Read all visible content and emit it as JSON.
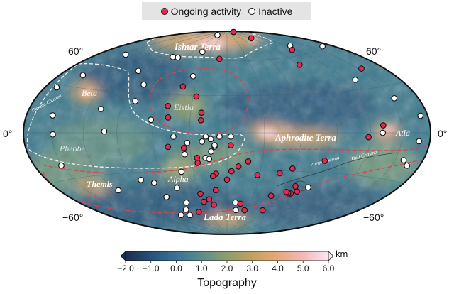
{
  "legend": {
    "ongoing_label": "Ongoing activity",
    "inactive_label": "Inactive",
    "ongoing_color": "#e8294f",
    "inactive_color": "#ffffff"
  },
  "lat_labels": {
    "n60": "60°",
    "zero": "0°",
    "s60": "−60°"
  },
  "regions": {
    "ishtar": "Ishtar Terra",
    "beta": "Beta",
    "eistla": "Eistla",
    "aphrodite": "Aphrodite Terra",
    "atla": "Atla",
    "pheobe": "Pheobe",
    "alpha": "Alpha",
    "themis": "Themis",
    "lada": "Lada Terra",
    "devana": "Devana Chasma",
    "parga": "Parga Chasma",
    "dali": "Dali Chasma"
  },
  "colorbar": {
    "ticks": [
      "−2.0",
      "−1.0",
      "0.0",
      "1.0",
      "2.0",
      "3.0",
      "4.0",
      "5.0",
      "6.0"
    ],
    "unit": "km",
    "title": "Topography",
    "colors": [
      "#1d2c4e",
      "#27527a",
      "#3a7394",
      "#5b8d8c",
      "#8e9d6c",
      "#c2a060",
      "#e6a97a",
      "#f2b8b8",
      "#fbe6f2"
    ]
  },
  "markers": {
    "ongoing": [
      [
        135,
        88
      ],
      [
        93,
        80
      ],
      [
        90,
        53
      ],
      [
        114,
        65
      ],
      [
        154,
        43
      ],
      [
        132,
        5
      ],
      [
        118,
        -3
      ],
      [
        84,
        -21
      ],
      [
        58,
        -28
      ],
      [
        48,
        -32
      ],
      [
        70,
        -42
      ],
      [
        76,
        -46
      ],
      [
        71,
        -48
      ],
      [
        68,
        -48
      ],
      [
        65,
        -47
      ],
      [
        51,
        -51
      ],
      [
        28,
        -34
      ],
      [
        10,
        -27
      ],
      [
        18,
        -23
      ],
      [
        4,
        -31
      ],
      [
        -10,
        -33
      ],
      [
        -25,
        -24
      ],
      [
        -35,
        -12
      ],
      [
        -48,
        -11
      ],
      [
        -30,
        -50
      ],
      [
        -22,
        -55
      ],
      [
        -30,
        -57
      ],
      [
        -47,
        -66
      ],
      [
        -18,
        -60
      ],
      [
        -12,
        -47
      ],
      [
        0,
        -38
      ],
      [
        18,
        -59
      ],
      [
        28,
        -65
      ],
      [
        56,
        -64
      ],
      [
        3,
        -10
      ],
      [
        -48,
        12
      ],
      [
        -50,
        21
      ],
      [
        -25,
        -20
      ],
      [
        -21,
        10
      ],
      [
        -21,
        16
      ],
      [
        -27,
        29
      ],
      [
        -42,
        37
      ],
      [
        -11,
        62
      ],
      [
        -13,
        -35
      ]
    ],
    "inactive": [
      [
        167,
        61
      ],
      [
        127,
        68
      ],
      [
        131,
        37
      ],
      [
        154,
        22
      ],
      [
        172,
        10
      ],
      [
        168,
        -5
      ],
      [
        159,
        -17
      ],
      [
        166,
        -20
      ],
      [
        131,
        0
      ],
      [
        -62,
        10
      ],
      [
        -32,
        -8
      ],
      [
        -43,
        -3
      ],
      [
        -17,
        -3
      ],
      [
        -6,
        -3
      ],
      [
        -20,
        -7
      ],
      [
        -10,
        -11
      ],
      [
        -13,
        -15
      ],
      [
        -18,
        -20
      ],
      [
        -35,
        -17
      ],
      [
        -15,
        -21
      ],
      [
        -41,
        -31
      ],
      [
        -13,
        -5
      ],
      [
        -10,
        -10
      ],
      [
        3,
        -3
      ],
      [
        -80,
        24
      ],
      [
        -81,
        37
      ],
      [
        -167,
        28
      ],
      [
        -152,
        11
      ],
      [
        -149,
        -1
      ],
      [
        -151,
        -21
      ],
      [
        -116,
        -42
      ],
      [
        -72,
        -39
      ],
      [
        -83,
        -36
      ],
      [
        -71,
        -51
      ],
      [
        -52,
        -44
      ],
      [
        -53,
        -57
      ],
      [
        -63,
        -63
      ],
      [
        -68,
        -68
      ],
      [
        -82,
        -67
      ],
      [
        -101,
        1
      ],
      [
        -108,
        17
      ],
      [
        -36,
        46
      ],
      [
        -44,
        68
      ],
      [
        -72,
        61
      ],
      [
        -80,
        61
      ],
      [
        -147,
        56
      ],
      [
        -154,
        38
      ],
      [
        -68,
        85
      ],
      [
        -100,
        47
      ],
      [
        14,
        -65
      ],
      [
        11,
        -58
      ],
      [
        84,
        -42
      ]
    ]
  }
}
